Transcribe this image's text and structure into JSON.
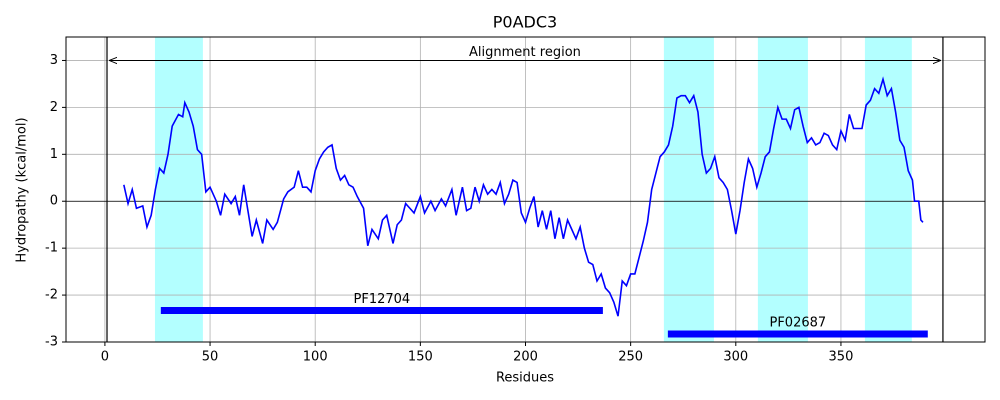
{
  "chart_data": {
    "type": "line",
    "title": "P0ADC3",
    "x_label": "Residues",
    "y_label": "Hydropathy (kcal/mol)",
    "xlim": [
      -18.5,
      418.5
    ],
    "ylim": [
      -3,
      3.5
    ],
    "xticks": [
      0,
      50,
      100,
      150,
      200,
      250,
      300,
      350
    ],
    "yticks": [
      -3,
      -2,
      -1,
      0,
      1,
      2,
      3
    ],
    "grid": true,
    "x": [
      9,
      11,
      13,
      15,
      18,
      20,
      22,
      24,
      26,
      28,
      30,
      32,
      35,
      37,
      38,
      40,
      42,
      44,
      46,
      48,
      50,
      53,
      55,
      57,
      60,
      62,
      64,
      66,
      68,
      70,
      72,
      75,
      77,
      80,
      82,
      85,
      87,
      90,
      92,
      94,
      96,
      98,
      100,
      102,
      104,
      106,
      108,
      110,
      112,
      114,
      116,
      118,
      120,
      123,
      125,
      127,
      130,
      132,
      134,
      137,
      139,
      141,
      143,
      145,
      147,
      150,
      152,
      155,
      157,
      160,
      162,
      165,
      167,
      170,
      172,
      174,
      176,
      178,
      180,
      182,
      184,
      186,
      188,
      190,
      192,
      194,
      196,
      198,
      200,
      202,
      204,
      206,
      208,
      210,
      212,
      214,
      216,
      218,
      220,
      222,
      224,
      226,
      228,
      230,
      232,
      234,
      236,
      238,
      240,
      242,
      244,
      246,
      248,
      250,
      252,
      254,
      256,
      258,
      260,
      262,
      264,
      266,
      268,
      270,
      272,
      274,
      276,
      278,
      280,
      282,
      284,
      286,
      288,
      290,
      292,
      294,
      296,
      298,
      300,
      302,
      304,
      306,
      308,
      310,
      312,
      314,
      316,
      318,
      320,
      322,
      324,
      326,
      328,
      330,
      332,
      334,
      336,
      338,
      340,
      342,
      344,
      346,
      348,
      350,
      352,
      354,
      356,
      358,
      360,
      362,
      364,
      366,
      368,
      370,
      372,
      374,
      376,
      378,
      380,
      382,
      384,
      385,
      387,
      388,
      389
    ],
    "series": [
      {
        "color": "#0000ff",
        "values": [
          0.35,
          -0.05,
          0.25,
          -0.15,
          -0.1,
          -0.55,
          -0.3,
          0.25,
          0.7,
          0.6,
          1.0,
          1.6,
          1.85,
          1.8,
          2.1,
          1.9,
          1.6,
          1.1,
          1.0,
          0.2,
          0.3,
          0.0,
          -0.3,
          0.15,
          -0.05,
          0.1,
          -0.3,
          0.35,
          -0.2,
          -0.75,
          -0.4,
          -0.9,
          -0.4,
          -0.6,
          -0.45,
          0.05,
          0.2,
          0.3,
          0.65,
          0.3,
          0.3,
          0.2,
          0.65,
          0.9,
          1.05,
          1.15,
          1.2,
          0.7,
          0.45,
          0.55,
          0.35,
          0.3,
          0.1,
          -0.15,
          -0.95,
          -0.6,
          -0.8,
          -0.4,
          -0.3,
          -0.9,
          -0.5,
          -0.4,
          -0.05,
          -0.15,
          -0.25,
          0.1,
          -0.25,
          0.0,
          -0.2,
          0.05,
          -0.1,
          0.25,
          -0.3,
          0.3,
          -0.2,
          -0.15,
          0.3,
          0.0,
          0.35,
          0.15,
          0.25,
          0.15,
          0.4,
          -0.05,
          0.15,
          0.45,
          0.4,
          -0.25,
          -0.45,
          -0.15,
          0.1,
          -0.55,
          -0.2,
          -0.6,
          -0.2,
          -0.8,
          -0.35,
          -0.8,
          -0.4,
          -0.6,
          -0.8,
          -0.55,
          -1.0,
          -1.3,
          -1.35,
          -1.7,
          -1.55,
          -1.85,
          -1.95,
          -2.15,
          -2.45,
          -1.7,
          -1.8,
          -1.55,
          -1.55,
          -1.2,
          -0.85,
          -0.45,
          0.25,
          0.6,
          0.95,
          1.05,
          1.2,
          1.6,
          2.2,
          2.25,
          2.25,
          2.1,
          2.25,
          1.9,
          1.0,
          0.6,
          0.7,
          0.95,
          0.5,
          0.4,
          0.25,
          -0.2,
          -0.7,
          -0.2,
          0.4,
          0.9,
          0.7,
          0.3,
          0.6,
          0.95,
          1.05,
          1.55,
          2.0,
          1.75,
          1.75,
          1.55,
          1.95,
          2.0,
          1.6,
          1.25,
          1.35,
          1.2,
          1.25,
          1.45,
          1.4,
          1.2,
          1.1,
          1.5,
          1.3,
          1.85,
          1.55,
          1.55,
          1.55,
          2.05,
          2.15,
          2.4,
          2.3,
          2.6,
          2.25,
          2.4,
          1.9,
          1.3,
          1.15,
          0.65,
          0.45,
          0.0,
          0.0,
          -0.4,
          -0.45
        ]
      }
    ],
    "spans": [
      {
        "start": 23.8,
        "end": 46.6
      },
      {
        "start": 265.8,
        "end": 289.6
      },
      {
        "start": 310.5,
        "end": 334.3
      },
      {
        "start": 361.4,
        "end": 383.7
      }
    ],
    "span_color": "#b3ffff",
    "vlines": [
      1,
      398.5
    ],
    "hline": 0,
    "annotation": {
      "text": "Alignment region",
      "start": 2,
      "end": 397.5,
      "y": 3
    },
    "domains": [
      {
        "name": "PF12704",
        "start": 26.6,
        "end": 236.8,
        "y": -2.33,
        "color": "#0000ff"
      },
      {
        "name": "PF02687",
        "start": 267.7,
        "end": 391.3,
        "y": -2.83,
        "color": "#0000ff"
      }
    ]
  }
}
